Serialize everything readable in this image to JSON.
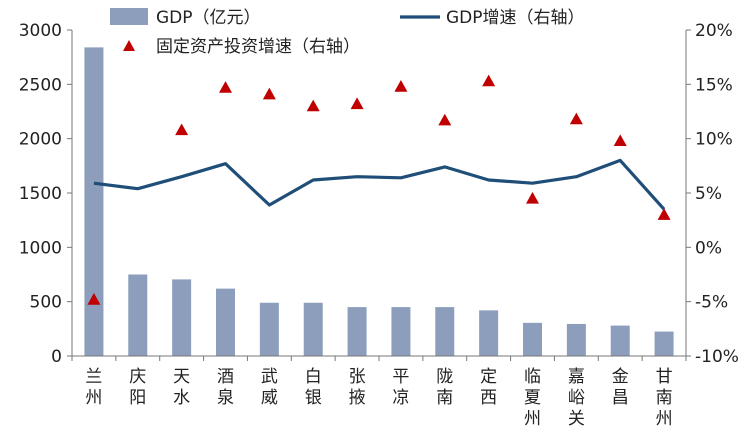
{
  "chart_data": {
    "type": "bar+line+scatter",
    "categories": [
      [
        "兰",
        "州"
      ],
      [
        "庆",
        "阳"
      ],
      [
        "天",
        "水"
      ],
      [
        "酒",
        "泉"
      ],
      [
        "武",
        "威"
      ],
      [
        "白",
        "银"
      ],
      [
        "张",
        "掖"
      ],
      [
        "平",
        "凉"
      ],
      [
        "陇",
        "南"
      ],
      [
        "定",
        "西"
      ],
      [
        "临",
        "夏",
        "州"
      ],
      [
        "嘉",
        "峪",
        "关"
      ],
      [
        "金",
        "昌"
      ],
      [
        "甘",
        "南",
        "州"
      ]
    ],
    "series": [
      {
        "name": "GDP（亿元）",
        "kind": "bar",
        "axis": "left",
        "values": [
          2840,
          750,
          705,
          620,
          490,
          490,
          450,
          450,
          450,
          420,
          305,
          295,
          280,
          225
        ]
      },
      {
        "name": "GDP增速（右轴）",
        "kind": "line",
        "axis": "right",
        "values": [
          5.9,
          5.4,
          6.5,
          7.7,
          3.9,
          6.2,
          6.5,
          6.4,
          7.4,
          6.2,
          5.9,
          6.5,
          8.0,
          3.5
        ]
      },
      {
        "name": "固定资产投资增速（右轴）",
        "kind": "scatter",
        "axis": "right",
        "values": [
          -4.8,
          null,
          10.8,
          14.7,
          14.1,
          13.0,
          13.2,
          14.8,
          11.7,
          15.3,
          4.5,
          11.8,
          9.8,
          3.0
        ]
      }
    ],
    "y_left": {
      "min": 0,
      "max": 3000,
      "step": 500,
      "ticks": [
        "0",
        "500",
        "1000",
        "1500",
        "2000",
        "2500",
        "3000"
      ]
    },
    "y_right": {
      "min": -10,
      "max": 20,
      "step": 5,
      "ticks": [
        "-10%",
        "-5%",
        "0%",
        "5%",
        "10%",
        "15%",
        "20%"
      ]
    },
    "colors": {
      "bar": "#8c9ebb",
      "line": "#1f4e79",
      "marker": "#c00000",
      "axis": "#777777"
    },
    "legend_position": "top"
  }
}
